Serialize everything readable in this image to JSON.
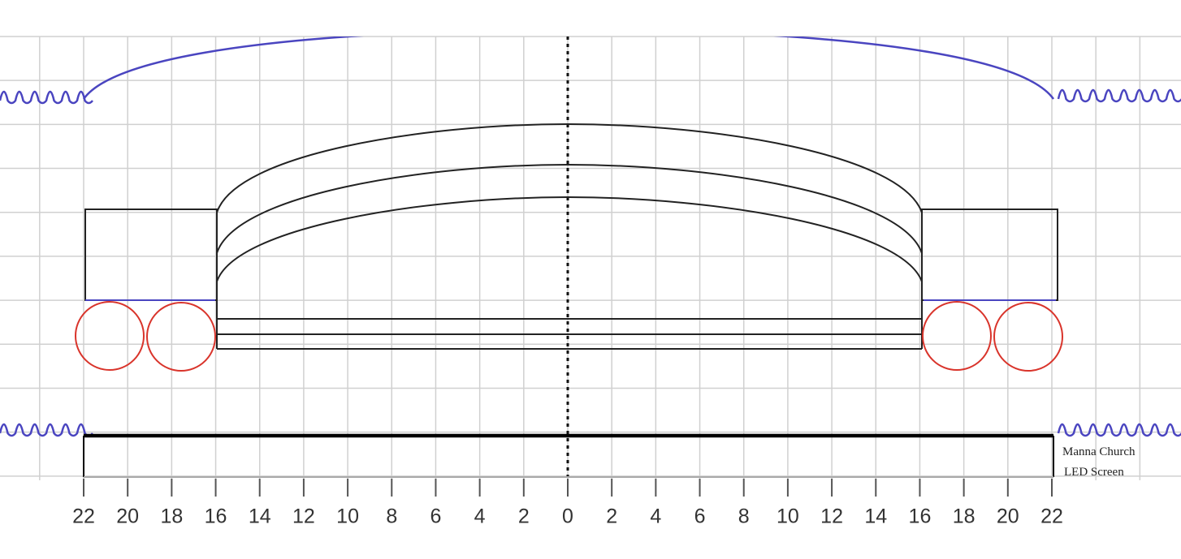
{
  "axis_labels": [
    "22",
    "20",
    "18",
    "16",
    "14",
    "12",
    "10",
    "8",
    "6",
    "4",
    "2",
    "0",
    "2",
    "4",
    "6",
    "8",
    "10",
    "12",
    "14",
    "16",
    "18",
    "20",
    "22"
  ],
  "screen_label": [
    "Manna Church",
    "LED Screen"
  ]
}
